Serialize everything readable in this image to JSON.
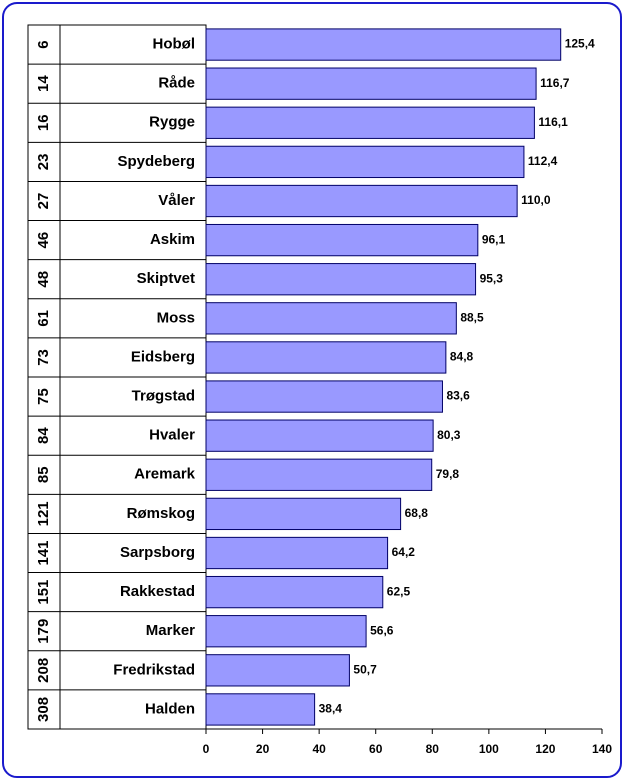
{
  "chart_data": {
    "type": "barh",
    "ranks": [
      6,
      14,
      16,
      23,
      27,
      46,
      48,
      61,
      73,
      75,
      84,
      85,
      121,
      141,
      151,
      179,
      208,
      308
    ],
    "categories": [
      "Hobøl",
      "Råde",
      "Rygge",
      "Spydeberg",
      "Våler",
      "Askim",
      "Skiptvet",
      "Moss",
      "Eidsberg",
      "Trøgstad",
      "Hvaler",
      "Aremark",
      "Rømskog",
      "Sarpsborg",
      "Rakkestad",
      "Marker",
      "Fredrikstad",
      "Halden"
    ],
    "values": [
      125.4,
      116.7,
      116.1,
      112.4,
      110.0,
      96.1,
      95.3,
      88.5,
      84.8,
      83.6,
      80.3,
      79.8,
      68.8,
      64.2,
      62.5,
      56.6,
      50.7,
      38.4
    ],
    "value_labels": [
      "125,4",
      "116,7",
      "116,1",
      "112,4",
      "110,0",
      "96,1",
      "95,3",
      "88,5",
      "84,8",
      "83,6",
      "80,3",
      "79,8",
      "68,8",
      "64,2",
      "62,5",
      "56,6",
      "50,7",
      "38,4"
    ],
    "color": "#9999ff",
    "xlim": [
      0,
      140
    ],
    "xticks": [
      0,
      20,
      40,
      60,
      80,
      100,
      120,
      140
    ]
  }
}
